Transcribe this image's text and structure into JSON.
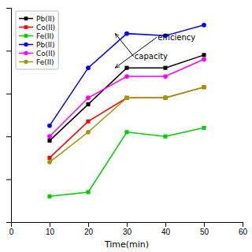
{
  "chart_data": {
    "type": "line",
    "xlabel": "Time(min)",
    "x": [
      10,
      20,
      30,
      40,
      50
    ],
    "series": [
      {
        "name": "Pb(II)",
        "color": "#000000",
        "marker": "square",
        "line_style": "solid",
        "values": [
          38,
          55,
          72,
          72,
          78
        ]
      },
      {
        "name": "Co(II)",
        "color": "#ff0000",
        "marker": "square",
        "line_style": "solid",
        "values": [
          30,
          47,
          58,
          58,
          63
        ]
      },
      {
        "name": "Fe(II)",
        "color": "#00cc00",
        "marker": "square",
        "line_style": "solid",
        "values": [
          12,
          14,
          42,
          40,
          44
        ]
      },
      {
        "name": "Pb(II)",
        "color": "#0000ff",
        "marker": "circle",
        "line_style": "solid",
        "values": [
          45,
          72,
          88,
          87,
          92
        ]
      },
      {
        "name": "Co(II)",
        "color": "#ff00ff",
        "marker": "circle",
        "line_style": "solid",
        "values": [
          40,
          58,
          68,
          68,
          76
        ]
      },
      {
        "name": "Fe(II)",
        "color": "#999900",
        "marker": "circle",
        "line_style": "solid",
        "values": [
          28,
          42,
          58,
          58,
          63
        ]
      }
    ],
    "xlim": [
      0,
      60
    ],
    "xticks": [
      0,
      10,
      20,
      30,
      40,
      50,
      60
    ],
    "ylim": [
      0,
      100
    ],
    "yticks": [
      0,
      20,
      40,
      60,
      80,
      100
    ],
    "tick_labels": "x",
    "grid": false,
    "legend": "upper left",
    "annotations": [
      {
        "text": "efficiency",
        "x": 27,
        "y": 72,
        "text_x": 38,
        "text_y": 85
      },
      {
        "text": "capacity",
        "x": 27,
        "y": 88,
        "text_x": 32,
        "text_y": 76
      }
    ]
  }
}
